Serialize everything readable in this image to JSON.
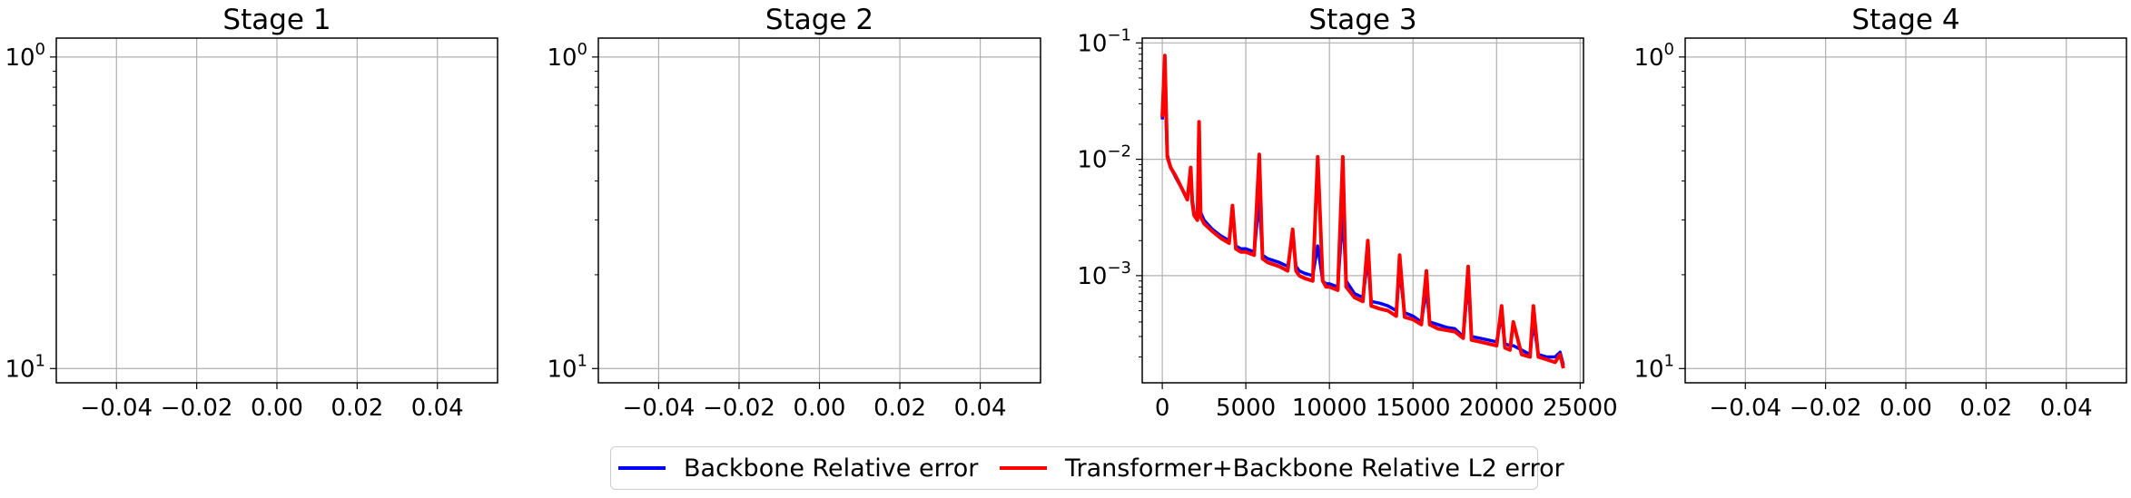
{
  "figure": {
    "panels": [
      {
        "title": "Stage 1",
        "empty": true,
        "x_ticks": [
          "−0.04",
          "−0.02",
          "0.00",
          "0.02",
          "0.04"
        ],
        "y_ticks": [
          {
            "base": "10",
            "exp": "1"
          },
          {
            "base": "10",
            "exp": "0"
          }
        ]
      },
      {
        "title": "Stage 2",
        "empty": true,
        "x_ticks": [
          "−0.04",
          "−0.02",
          "0.00",
          "0.02",
          "0.04"
        ],
        "y_ticks": [
          {
            "base": "10",
            "exp": "1"
          },
          {
            "base": "10",
            "exp": "0"
          }
        ]
      },
      {
        "title": "Stage 3",
        "empty": false,
        "x_ticks": [
          "0",
          "5000",
          "10000",
          "15000",
          "20000",
          "25000"
        ],
        "y_ticks": [
          {
            "base": "10",
            "exp": "−1"
          },
          {
            "base": "10",
            "exp": "−2"
          },
          {
            "base": "10",
            "exp": "−3"
          }
        ]
      },
      {
        "title": "Stage 4",
        "empty": true,
        "x_ticks": [
          "−0.04",
          "−0.02",
          "0.00",
          "0.02",
          "0.04"
        ],
        "y_ticks": [
          {
            "base": "10",
            "exp": "1"
          },
          {
            "base": "10",
            "exp": "0"
          }
        ]
      }
    ],
    "legend": [
      {
        "label": "Backbone Relative error",
        "color": "#0000ff"
      },
      {
        "label": "Transformer+Backbone Relative L2 error",
        "color": "#ff0000"
      }
    ]
  },
  "chart_data": [
    {
      "type": "line",
      "title": "Stage 1",
      "xlabel": "",
      "ylabel": "",
      "yscale": "log",
      "xlim": [
        -0.055,
        0.055
      ],
      "ylim": [
        0.9,
        11.5
      ],
      "grid": true,
      "series": [],
      "x_ticks": [
        -0.04,
        -0.02,
        0.0,
        0.02,
        0.04
      ],
      "y_ticks": [
        1,
        10
      ]
    },
    {
      "type": "line",
      "title": "Stage 2",
      "xlabel": "",
      "ylabel": "",
      "yscale": "log",
      "xlim": [
        -0.055,
        0.055
      ],
      "ylim": [
        0.9,
        11.5
      ],
      "grid": true,
      "series": [],
      "x_ticks": [
        -0.04,
        -0.02,
        0.0,
        0.02,
        0.04
      ],
      "y_ticks": [
        1,
        10
      ]
    },
    {
      "type": "line",
      "title": "Stage 3",
      "xlabel": "",
      "ylabel": "",
      "yscale": "log",
      "xlim": [
        -1200,
        25200
      ],
      "ylim": [
        0.00012,
        0.11
      ],
      "grid": true,
      "x_ticks": [
        0,
        5000,
        10000,
        15000,
        20000,
        25000
      ],
      "y_ticks": [
        0.1,
        0.01,
        0.001
      ],
      "series": [
        {
          "name": "Backbone Relative error",
          "color": "#0000ff",
          "x": [
            0,
            150,
            300,
            500,
            800,
            1200,
            1500,
            1700,
            1800,
            1900,
            2100,
            2200,
            2300,
            2500,
            3000,
            3500,
            4000,
            4200,
            4400,
            4700,
            5000,
            5500,
            5800,
            6000,
            6300,
            7000,
            7500,
            7800,
            8000,
            8200,
            8500,
            9000,
            9300,
            9600,
            9800,
            10000,
            10500,
            10800,
            11000,
            11500,
            12000,
            12300,
            12500,
            13000,
            13500,
            14000,
            14200,
            14500,
            15000,
            15500,
            15800,
            16000,
            16500,
            17000,
            17500,
            18000,
            18300,
            18500,
            19000,
            19500,
            20000,
            20300,
            20500,
            20800,
            21000,
            21500,
            22000,
            22200,
            22500,
            23000,
            23500,
            23800,
            24000
          ],
          "y": [
            0.022,
            0.045,
            0.011,
            0.0085,
            0.007,
            0.0055,
            0.0045,
            0.0075,
            0.0045,
            0.0035,
            0.0032,
            0.0095,
            0.0035,
            0.003,
            0.0025,
            0.0022,
            0.002,
            0.0035,
            0.0018,
            0.0017,
            0.0017,
            0.0016,
            0.0045,
            0.0015,
            0.0014,
            0.0013,
            0.0012,
            0.0022,
            0.0012,
            0.0011,
            0.00105,
            0.001,
            0.0018,
            0.0009,
            0.00085,
            0.00085,
            0.0008,
            0.0035,
            0.0009,
            0.0007,
            0.00065,
            0.0014,
            0.0006,
            0.00058,
            0.00055,
            0.0005,
            0.0011,
            0.00048,
            0.00045,
            0.0004,
            0.00075,
            0.0004,
            0.00038,
            0.00036,
            0.00035,
            0.0003,
            0.0009,
            0.0003,
            0.00029,
            0.00028,
            0.00027,
            0.00045,
            0.00026,
            0.00025,
            0.00025,
            0.00023,
            0.00021,
            0.0004,
            0.00021,
            0.0002,
            0.0002,
            0.00022,
            0.00017
          ]
        },
        {
          "name": "Transformer+Backbone Relative L2 error",
          "color": "#ff0000",
          "x": [
            0,
            150,
            300,
            500,
            800,
            1200,
            1500,
            1700,
            1800,
            1900,
            2100,
            2200,
            2300,
            2500,
            3000,
            3500,
            4000,
            4200,
            4400,
            4700,
            5000,
            5500,
            5800,
            6000,
            6300,
            7000,
            7500,
            7800,
            8000,
            8200,
            8500,
            9000,
            9300,
            9600,
            9800,
            10000,
            10500,
            10800,
            11000,
            11500,
            12000,
            12300,
            12500,
            13000,
            13500,
            14000,
            14200,
            14500,
            15000,
            15500,
            15800,
            16000,
            16500,
            17000,
            17500,
            18000,
            18300,
            18500,
            19000,
            19500,
            20000,
            20300,
            20500,
            20800,
            21000,
            21500,
            22000,
            22200,
            22500,
            23000,
            23500,
            23800,
            24000
          ],
          "y": [
            0.023,
            0.078,
            0.0105,
            0.0085,
            0.0072,
            0.0055,
            0.0045,
            0.0085,
            0.0042,
            0.0033,
            0.003,
            0.021,
            0.0032,
            0.0028,
            0.0024,
            0.0021,
            0.0019,
            0.004,
            0.0017,
            0.0016,
            0.0016,
            0.0015,
            0.011,
            0.0014,
            0.0013,
            0.0012,
            0.0011,
            0.0025,
            0.0011,
            0.001,
            0.00095,
            0.0009,
            0.0105,
            0.0009,
            0.0008,
            0.0008,
            0.00075,
            0.0105,
            0.0008,
            0.00065,
            0.0006,
            0.002,
            0.00055,
            0.00052,
            0.0005,
            0.00045,
            0.0015,
            0.00044,
            0.00042,
            0.00038,
            0.0011,
            0.00038,
            0.00035,
            0.00034,
            0.00033,
            0.00029,
            0.0012,
            0.00028,
            0.00027,
            0.00026,
            0.00025,
            0.00055,
            0.00024,
            0.00023,
            0.0004,
            0.00021,
            0.0002,
            0.00055,
            0.0002,
            0.00019,
            0.00018,
            0.00021,
            0.00016
          ]
        }
      ]
    },
    {
      "type": "line",
      "title": "Stage 4",
      "xlabel": "",
      "ylabel": "",
      "yscale": "log",
      "xlim": [
        -0.055,
        0.055
      ],
      "ylim": [
        0.9,
        11.5
      ],
      "grid": true,
      "series": [],
      "x_ticks": [
        -0.04,
        -0.02,
        0.0,
        0.02,
        0.04
      ],
      "y_ticks": [
        1,
        10
      ]
    }
  ]
}
